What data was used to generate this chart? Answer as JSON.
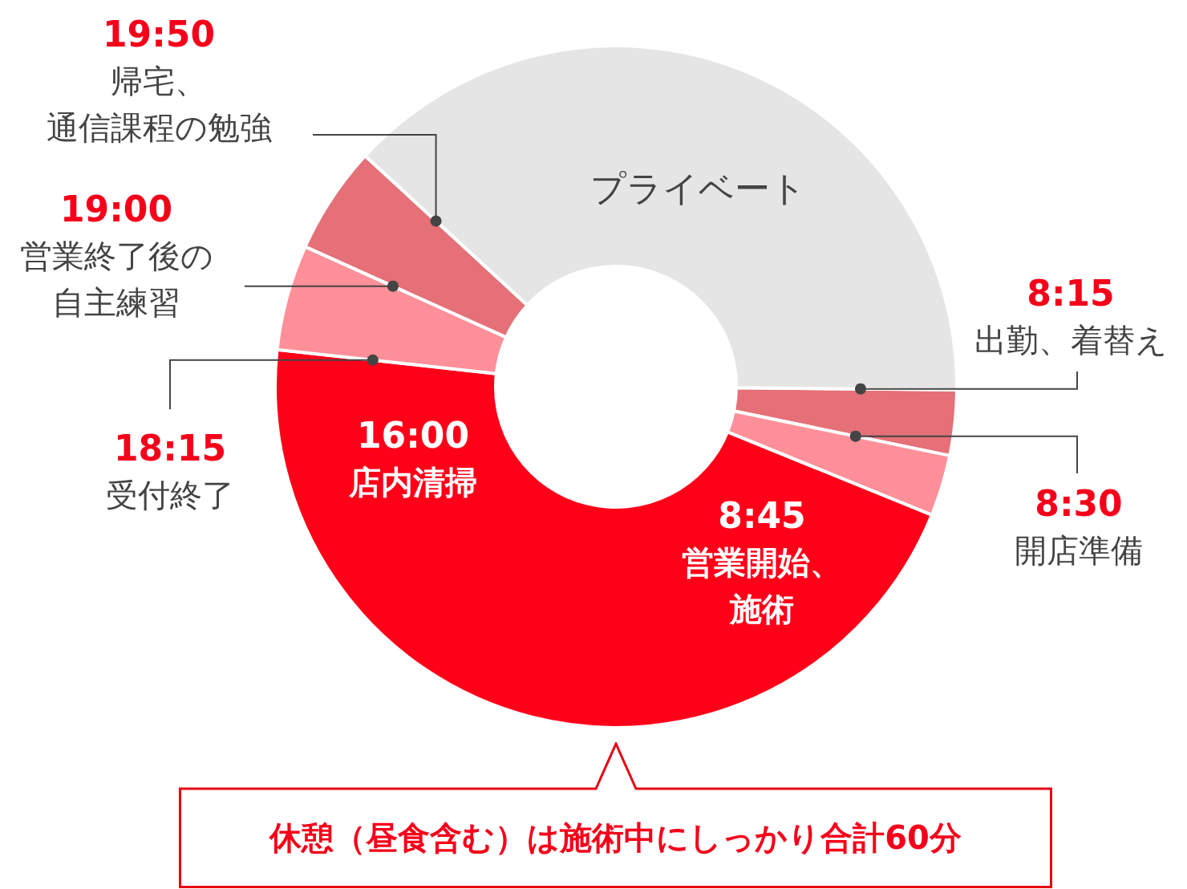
{
  "chart_data": {
    "type": "donut",
    "categories": [
      "8:15\n出勤、着替え",
      "8:30\n開店準備",
      "8:45\n営業開始、施術",
      "18:15\n受付終了",
      "19:00\n営業終了後の自主練習",
      "19:50\n帰宅、通信課程の勉強"
    ],
    "values": [
      3.1,
      2.9,
      45.6,
      5.0,
      5.1,
      38.3
    ],
    "colors": [
      "#e57077",
      "#ff8f98",
      "#ff0019",
      "#ff8f98",
      "#e57077",
      "#e5e5e5"
    ],
    "annotations": [
      "プライベート",
      "16:00\n店内清掃",
      "休憩（昼食含む）は施術中にしっかり合計60分"
    ]
  }
}
